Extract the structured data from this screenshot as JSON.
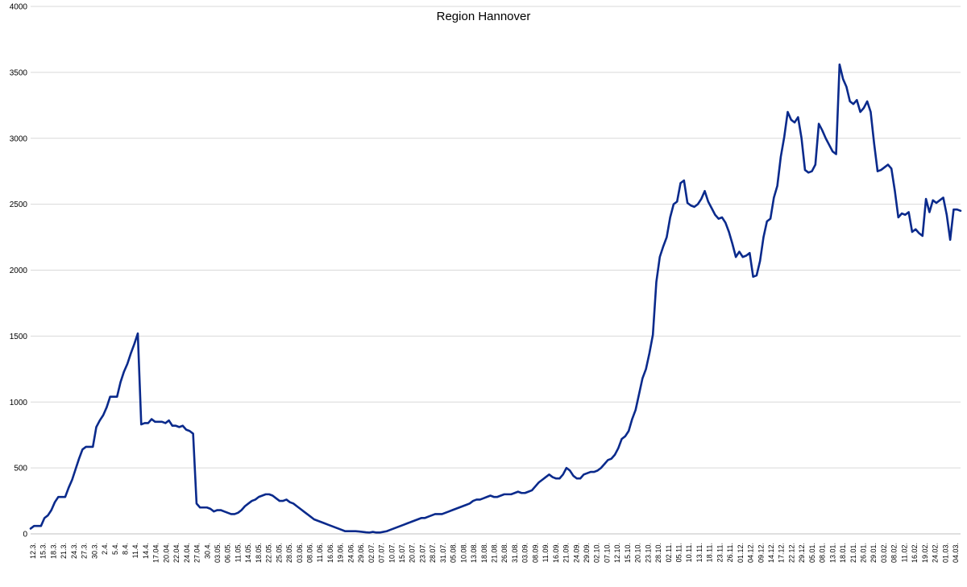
{
  "chart_data": {
    "type": "line",
    "title": "Region Hannover",
    "xlabel": "",
    "ylabel": "",
    "ylim": [
      0,
      4000
    ],
    "yticks": [
      0,
      500,
      1000,
      1500,
      2000,
      2500,
      3000,
      3500,
      4000
    ],
    "grid": true,
    "legend": "none",
    "x_tick_labels": [
      "12.3.",
      "15.3.",
      "18.3.",
      "21.3.",
      "24.3.",
      "27.3.",
      "30.3.",
      "2.4.",
      "5.4.",
      "8.4.",
      "11.4.",
      "14.4.",
      "17.04.",
      "20.04.",
      "22.04.",
      "24.04.",
      "27.04.",
      "30.4.",
      "03.05.",
      "06.05.",
      "11.05.",
      "14.05.",
      "18.05.",
      "22.05.",
      "25.05.",
      "28.05.",
      "03.06.",
      "08.06.",
      "11.06.",
      "16.06.",
      "19.06.",
      "24.06.",
      "29.06.",
      "02.07.",
      "07.07.",
      "10.07.",
      "15.07.",
      "20.07.",
      "23.07.",
      "28.07.",
      "31.07.",
      "05.08.",
      "10.08.",
      "13.08.",
      "18.08.",
      "21.08.",
      "26.08.",
      "31.08.",
      "03.09.",
      "08.09.",
      "11.09.",
      "16.09.",
      "21.09.",
      "24.09.",
      "29.09.",
      "02.10.",
      "07.10.",
      "12.10.",
      "15.10.",
      "20.10.",
      "23.10.",
      "28.10.",
      "02.11.",
      "05.11.",
      "10.11.",
      "13.11.",
      "18.11.",
      "23.11.",
      "26.11.",
      "01.12.",
      "04.12.",
      "09.12.",
      "14.12.",
      "17.12.",
      "22.12.",
      "29.12.",
      "05.01.",
      "08.01.",
      "13.01.",
      "18.01.",
      "21.01.",
      "26.01.",
      "29.01.",
      "03.02.",
      "08.02.",
      "11.02.",
      "16.02.",
      "19.02.",
      "24.02.",
      "01.03.",
      "04.03."
    ],
    "colors": {
      "series": "#0a2a8c",
      "grid": "#d9d9d9"
    },
    "series": [
      {
        "name": "",
        "values": [
          40,
          60,
          60,
          60,
          120,
          140,
          180,
          240,
          280,
          280,
          280,
          350,
          410,
          490,
          570,
          640,
          660,
          660,
          660,
          810,
          860,
          900,
          960,
          1040,
          1040,
          1040,
          1150,
          1230,
          1290,
          1370,
          1440,
          1520,
          830,
          840,
          840,
          870,
          850,
          850,
          850,
          840,
          860,
          820,
          820,
          810,
          820,
          790,
          780,
          760,
          230,
          200,
          200,
          200,
          190,
          170,
          180,
          180,
          170,
          160,
          150,
          150,
          160,
          180,
          210,
          230,
          250,
          260,
          280,
          290,
          300,
          300,
          290,
          270,
          250,
          250,
          260,
          240,
          230,
          210,
          190,
          170,
          150,
          130,
          110,
          100,
          90,
          80,
          70,
          60,
          50,
          40,
          30,
          20,
          20,
          20,
          20,
          18,
          15,
          12,
          10,
          15,
          10,
          10,
          15,
          20,
          30,
          40,
          50,
          60,
          70,
          80,
          90,
          100,
          110,
          120,
          120,
          130,
          140,
          150,
          150,
          150,
          160,
          170,
          180,
          190,
          200,
          210,
          220,
          230,
          250,
          260,
          260,
          270,
          280,
          290,
          280,
          280,
          290,
          300,
          300,
          300,
          310,
          320,
          310,
          310,
          320,
          330,
          360,
          390,
          410,
          430,
          450,
          430,
          420,
          420,
          450,
          500,
          480,
          440,
          420,
          420,
          450,
          460,
          470,
          470,
          480,
          500,
          530,
          560,
          570,
          600,
          650,
          720,
          740,
          780,
          870,
          940,
          1060,
          1180,
          1250,
          1370,
          1510,
          1910,
          2100,
          2180,
          2250,
          2400,
          2500,
          2520,
          2660,
          2680,
          2510,
          2490,
          2480,
          2500,
          2540,
          2600,
          2520,
          2470,
          2420,
          2390,
          2400,
          2360,
          2290,
          2200,
          2100,
          2140,
          2100,
          2110,
          2130,
          1950,
          1960,
          2070,
          2250,
          2370,
          2390,
          2550,
          2640,
          2860,
          3010,
          3200,
          3140,
          3120,
          3160,
          3000,
          2760,
          2740,
          2750,
          2800,
          3110,
          3060,
          3000,
          2950,
          2900,
          2880,
          3560,
          3450,
          3390,
          3280,
          3260,
          3290,
          3200,
          3230,
          3280,
          3200,
          2960,
          2750,
          2760,
          2780,
          2800,
          2770,
          2600,
          2400,
          2430,
          2420,
          2440,
          2290,
          2310,
          2280,
          2260,
          2540,
          2440,
          2530,
          2510,
          2530,
          2550,
          2420,
          2230,
          2460,
          2460,
          2450
        ]
      }
    ]
  }
}
